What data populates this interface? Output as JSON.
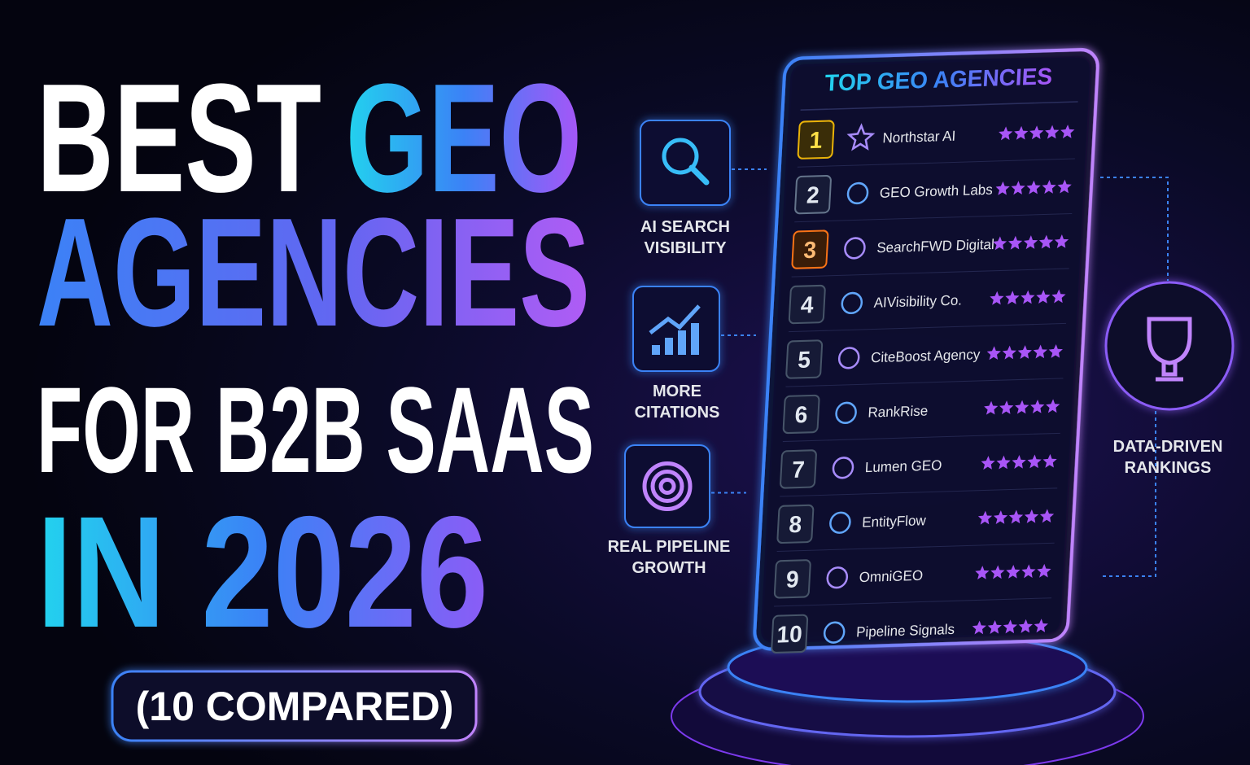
{
  "headline": {
    "lines": [
      [
        "BEST",
        "GEO"
      ],
      [
        "AGENCIES"
      ],
      [
        "FOR B2B SAAS"
      ],
      [
        "IN 2026"
      ]
    ],
    "badge": "(10 COMPARED)"
  },
  "ranking": {
    "title": "TOP GEO AGENCIES",
    "rows": [
      {
        "rank": 1,
        "name": "Northstar AI"
      },
      {
        "rank": 2,
        "name": "GEO Growth Labs"
      },
      {
        "rank": 3,
        "name": "SearchFWD Digital"
      },
      {
        "rank": 4,
        "name": "AIVisibility Co."
      },
      {
        "rank": 5,
        "name": "CiteBoost Agency"
      },
      {
        "rank": 6,
        "name": "RankRise"
      },
      {
        "rank": 7,
        "name": "Lumen GEO"
      },
      {
        "rank": 8,
        "name": "EntityFlow"
      },
      {
        "rank": 9,
        "name": "OmniGEO"
      },
      {
        "rank": 10,
        "name": "Pipeline Signals"
      }
    ]
  },
  "features": [
    {
      "label": [
        "AI SEARCH",
        "VISIBILITY"
      ]
    },
    {
      "label": [
        "MORE",
        "CITATIONS"
      ]
    },
    {
      "label": [
        "REAL PIPELINE",
        "GROWTH"
      ]
    },
    {
      "label": [
        "DATA-DRIVEN",
        "RANKINGS"
      ]
    }
  ]
}
